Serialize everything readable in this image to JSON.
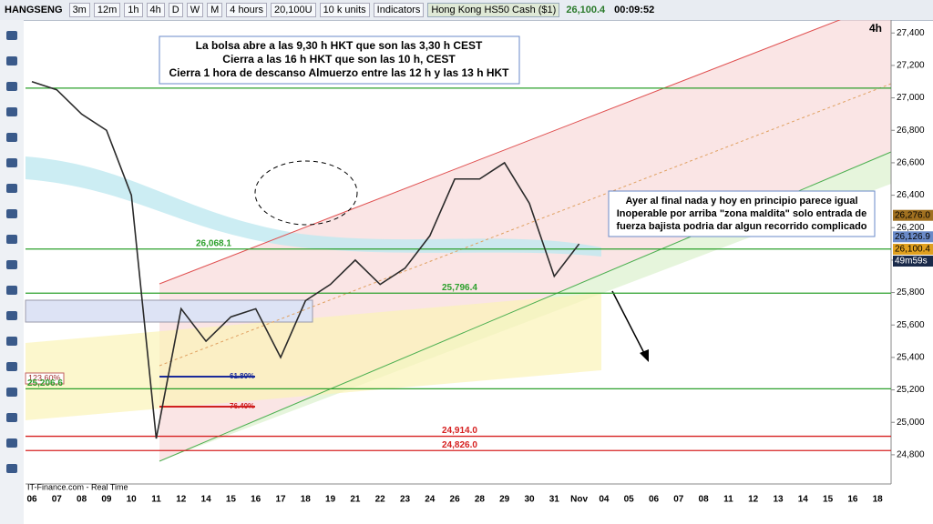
{
  "toolbar": {
    "symbol": "HANGSENG",
    "intervals": [
      "3m",
      "12m",
      "1h",
      "4h",
      "D",
      "W",
      "M"
    ],
    "period": "4 hours",
    "size": "20,100U",
    "units": "10 k units",
    "indicators": "Indicators",
    "instrument": "Hong Kong HS50 Cash ($1)",
    "price": "26,100.4",
    "clock": "00:09:52"
  },
  "notes": [
    "La bolsa abre a las 9,30 h HKT que son las 3,30 h CEST",
    "Cierra a las 16 h HKT que son las 10 h, CEST",
    "Cierra 1 hora de descanso Almuerzo entre las 12 h y las 13 h HKT",
    "Ayer al final nada y hoy en principio parece igual",
    "Inoperable por arriba \"zona maldita\" solo entrada de",
    "fuerza bajista podria dar algun recorrido complicado"
  ],
  "source": "IT-Finance.com - Real Time",
  "fib_labels": [
    "123.60%",
    "61.80%",
    "76.40%"
  ],
  "chart_data": {
    "type": "line",
    "timeframe": "4h",
    "categories": [
      "06",
      "07",
      "08",
      "09",
      "10",
      "11",
      "12",
      "14",
      "15",
      "16",
      "17",
      "18",
      "19",
      "21",
      "22",
      "23",
      "24",
      "26",
      "28",
      "29",
      "30",
      "31",
      "Nov",
      "04",
      "05",
      "06",
      "07",
      "08",
      "11",
      "12",
      "13",
      "14",
      "15",
      "16",
      "18"
    ],
    "series": [
      {
        "name": "HANGSENG",
        "color": "#2a2a2a",
        "values": [
          27100,
          27050,
          26900,
          26800,
          26400,
          24900,
          25700,
          25500,
          25650,
          25700,
          25400,
          25750,
          25850,
          26000,
          25850,
          25950,
          26150,
          26500,
          26500,
          26600,
          26350,
          25900,
          26100,
          null,
          null,
          null,
          null,
          null,
          null,
          null,
          null,
          null,
          null,
          null,
          null
        ]
      }
    ],
    "ylim": [
      24620,
      27480
    ],
    "yticks": [
      {
        "value": 24800,
        "label": "24,800"
      },
      {
        "value": 25000,
        "label": "25,000"
      },
      {
        "value": 25200,
        "label": "25,200"
      },
      {
        "value": 25400,
        "label": "25,400"
      },
      {
        "value": 25600,
        "label": "25,600"
      },
      {
        "value": 25800,
        "label": "25,800"
      },
      {
        "value": 26000,
        "label": "26,000"
      },
      {
        "value": 26200,
        "label": "26,200"
      },
      {
        "value": 26400,
        "label": "26,400"
      },
      {
        "value": 26600,
        "label": "26,600"
      },
      {
        "value": 26800,
        "label": "26,800"
      },
      {
        "value": 27000,
        "label": "27,000"
      },
      {
        "value": 27200,
        "label": "27,200"
      },
      {
        "value": 27400,
        "label": "27,400"
      }
    ],
    "levels": [
      {
        "value": 27060,
        "color": "#2ca02c"
      },
      {
        "value": 26068.1,
        "label": "26,068.1",
        "color": "#2ca02c"
      },
      {
        "value": 25796.4,
        "label": "25,796.4",
        "color": "#2ca02c"
      },
      {
        "value": 25206.6,
        "label": "25,206.6",
        "color": "#2ca02c"
      },
      {
        "value": 24914.0,
        "label": "24,914.0",
        "color": "#d62020"
      },
      {
        "value": 24826.0,
        "label": "24,826.0",
        "color": "#d62020"
      }
    ],
    "price_tags": [
      {
        "value": 26276.0,
        "label": "26,276.0",
        "color": "#a07020"
      },
      {
        "value": 26126.9,
        "label": "26,126.9",
        "color": "#6a8ac8"
      },
      {
        "value": 26100.4,
        "label": "26,100.4",
        "color": "#e0a020"
      }
    ],
    "countdown": "49m59s"
  }
}
